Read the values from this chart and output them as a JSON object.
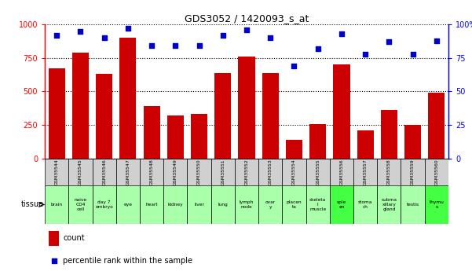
{
  "title": "GDS3052 / 1420093_s_at",
  "gsm_labels": [
    "GSM35544",
    "GSM35545",
    "GSM35546",
    "GSM35547",
    "GSM35548",
    "GSM35549",
    "GSM35550",
    "GSM35551",
    "GSM35552",
    "GSM35553",
    "GSM35554",
    "GSM35555",
    "GSM35556",
    "GSM35557",
    "GSM35558",
    "GSM35559",
    "GSM35560"
  ],
  "tissue_labels": [
    "brain",
    "naive\nCD4\ncell",
    "day 7\nembryo",
    "eye",
    "heart",
    "kidney",
    "liver",
    "lung",
    "lymph\nnode",
    "ovar\ny",
    "placen\nta",
    "skeleta\nl\nmuscle",
    "sple\nen",
    "stoma\nch",
    "subma\nxillary\ngland",
    "testis",
    "thymu\ns"
  ],
  "tissue_colors": [
    "#aaffaa",
    "#aaffaa",
    "#aaffaa",
    "#aaffaa",
    "#aaffaa",
    "#aaffaa",
    "#aaffaa",
    "#aaffaa",
    "#aaffaa",
    "#aaffaa",
    "#aaffaa",
    "#aaffaa",
    "#44ff44",
    "#aaffaa",
    "#aaffaa",
    "#aaffaa",
    "#44ff44"
  ],
  "gsm_row_color": "#d0d0d0",
  "counts": [
    670,
    790,
    630,
    900,
    390,
    320,
    330,
    640,
    760,
    640,
    140,
    255,
    700,
    210,
    360,
    250,
    490
  ],
  "percentiles": [
    92,
    95,
    90,
    97,
    84,
    84,
    84,
    92,
    96,
    90,
    69,
    82,
    93,
    78,
    87,
    78,
    88
  ],
  "bar_color": "#cc0000",
  "dot_color": "#0000cc",
  "ylim_left": [
    0,
    1000
  ],
  "ylim_right": [
    0,
    100
  ],
  "yticks_left": [
    0,
    250,
    500,
    750,
    1000
  ],
  "yticks_right": [
    0,
    25,
    50,
    75,
    100
  ],
  "bar_width": 0.7
}
